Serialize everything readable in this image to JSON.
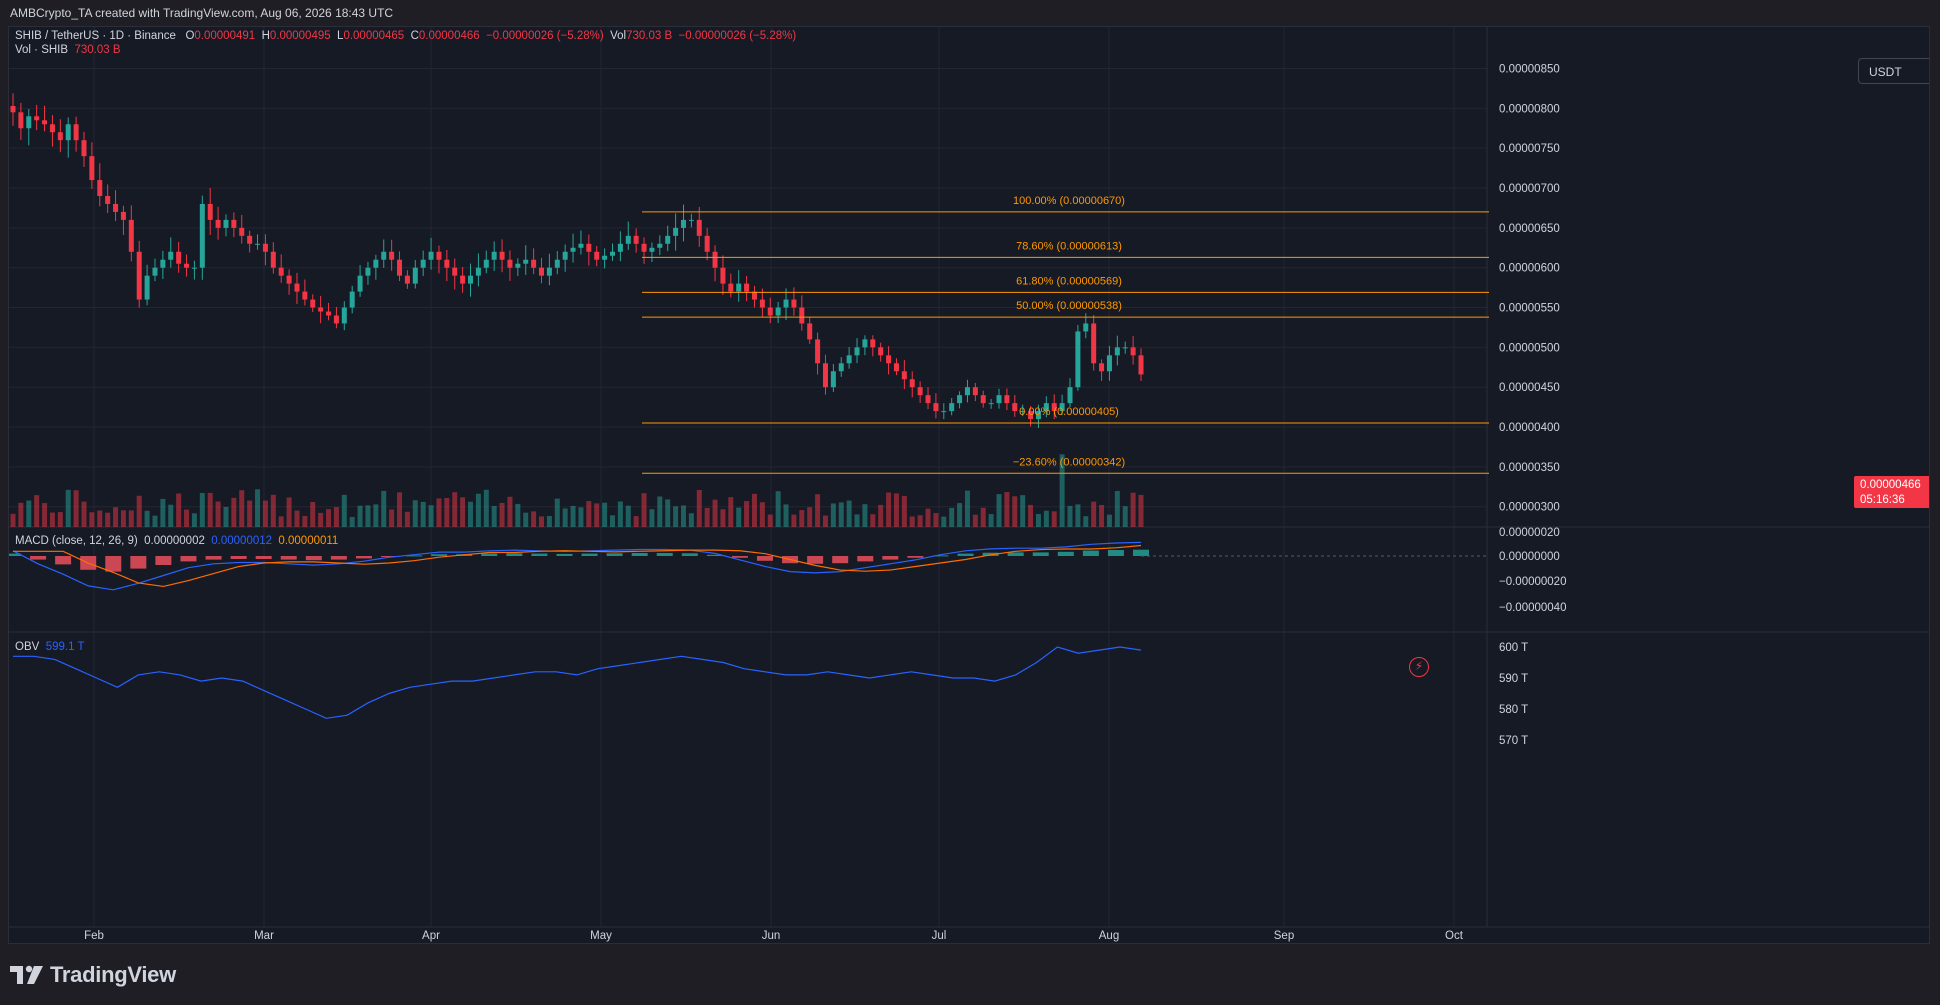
{
  "header": {
    "credit": "AMBCrypto_TA created with TradingView.com, Aug 06, 2026 18:43 UTC"
  },
  "legend": {
    "symbol": "SHIB / TetherUS · 1D · Binance",
    "o_label": "O",
    "o": "0.00000491",
    "h_label": "H",
    "h": "0.00000495",
    "l_label": "L",
    "l": "0.00000465",
    "c_label": "C",
    "c": "0.00000466",
    "change": "−0.00000026 (−5.28%)",
    "vol_label": "Vol",
    "vol": "730.03 B",
    "vol_change": "−0.00000026 (−5.28%)",
    "vol_series_label": "Vol · SHIB",
    "vol_series_value": "730.03 B"
  },
  "currency_button": "USDT",
  "last_price": {
    "value": "0.00000466",
    "countdown": "05:16:36"
  },
  "macd_legend": {
    "label": "MACD (close, 12, 26, 9)",
    "histogram": "0.00000002",
    "macd": "0.00000012",
    "signal": "0.00000011"
  },
  "obv_legend": {
    "label": "OBV",
    "value": "599.1 T"
  },
  "footer": {
    "brand": "TradingView"
  },
  "colors": {
    "up": "#26a69a",
    "down": "#f23645",
    "fib": "#ff9800",
    "macd_line": "#2962ff",
    "signal_line": "#ff6d00",
    "obv_line": "#2962ff"
  },
  "chart_data": {
    "type": "candlestick",
    "price_axis": {
      "ticks": [
        "0.00000850",
        "0.00000800",
        "0.00000750",
        "0.00000700",
        "0.00000650",
        "0.00000600",
        "0.00000550",
        "0.00000500",
        "0.00000450",
        "0.00000400",
        "0.00000350",
        "0.00000300"
      ],
      "ylim": [
        2.62e-06,
        8.82e-06
      ]
    },
    "time_axis": {
      "ticks": [
        "Feb",
        "Mar",
        "Apr",
        "May",
        "Jun",
        "Jul",
        "Aug",
        "Sep",
        "Oct"
      ]
    },
    "close_series": [
      7.95e-06,
      7.75e-06,
      7.9e-06,
      7.85e-06,
      7.8e-06,
      7.7e-06,
      7.6e-06,
      7.8e-06,
      7.6e-06,
      7.4e-06,
      7.1e-06,
      6.9e-06,
      6.8e-06,
      6.7e-06,
      6.6e-06,
      6.2e-06,
      5.6e-06,
      5.9e-06,
      6e-06,
      6.1e-06,
      6.2e-06,
      6.05e-06,
      6e-06,
      6e-06,
      6.8e-06,
      6.6e-06,
      6.5e-06,
      6.6e-06,
      6.5e-06,
      6.4e-06,
      6.3e-06,
      6.3e-06,
      6.2e-06,
      6e-06,
      5.9e-06,
      5.8e-06,
      5.7e-06,
      5.6e-06,
      5.5e-06,
      5.45e-06,
      5.4e-06,
      5.3e-06,
      5.5e-06,
      5.7e-06,
      5.9e-06,
      6e-06,
      6.1e-06,
      6.2e-06,
      6.1e-06,
      5.9e-06,
      5.8e-06,
      6e-06,
      6.1e-06,
      6.2e-06,
      6.1e-06,
      6e-06,
      5.9e-06,
      5.8e-06,
      5.9e-06,
      6e-06,
      6.1e-06,
      6.2e-06,
      6.1e-06,
      6e-06,
      6.05e-06,
      6.1e-06,
      6e-06,
      5.9e-06,
      6e-06,
      6.1e-06,
      6.2e-06,
      6.25e-06,
      6.3e-06,
      6.2e-06,
      6.1e-06,
      6.15e-06,
      6.2e-06,
      6.3e-06,
      6.4e-06,
      6.3e-06,
      6.2e-06,
      6.25e-06,
      6.3e-06,
      6.4e-06,
      6.5e-06,
      6.6e-06,
      6.6e-06,
      6.4e-06,
      6.2e-06,
      6e-06,
      5.8e-06,
      5.7e-06,
      5.8e-06,
      5.7e-06,
      5.6e-06,
      5.5e-06,
      5.4e-06,
      5.5e-06,
      5.6e-06,
      5.5e-06,
      5.3e-06,
      5.1e-06,
      4.8e-06,
      4.5e-06,
      4.7e-06,
      4.8e-06,
      4.9e-06,
      5e-06,
      5.1e-06,
      5e-06,
      4.9e-06,
      4.8e-06,
      4.7e-06,
      4.6e-06,
      4.5e-06,
      4.4e-06,
      4.3e-06,
      4.2e-06,
      4.2e-06,
      4.3e-06,
      4.4e-06,
      4.5e-06,
      4.4e-06,
      4.3e-06,
      4.3e-06,
      4.4e-06,
      4.3e-06,
      4.2e-06,
      4.2e-06,
      4.1e-06,
      4.2e-06,
      4.3e-06,
      4.2e-06,
      4.3e-06,
      4.5e-06,
      5.2e-06,
      5.3e-06,
      4.8e-06,
      4.7e-06,
      4.9e-06,
      5e-06,
      5e-06,
      4.9e-06,
      4.66e-06
    ],
    "fibonacci": [
      {
        "label": "100.00% (0.00000670)",
        "price": 6.7e-06
      },
      {
        "label": "78.60% (0.00000613)",
        "price": 6.13e-06
      },
      {
        "label": "61.80% (0.00000569)",
        "price": 5.69e-06
      },
      {
        "label": "50.00% (0.00000538)",
        "price": 5.38e-06
      },
      {
        "label": "0.00% (0.00000405)",
        "price": 4.05e-06
      },
      {
        "label": "−23.60% (0.00000342)",
        "price": 3.42e-06
      }
    ],
    "macd_axis": {
      "ticks": [
        "0.00000020",
        "0.00000000",
        "−0.00000020",
        "−0.00000040"
      ]
    },
    "obv_axis": {
      "ticks": [
        "600 T",
        "590 T",
        "580 T",
        "570 T"
      ]
    }
  }
}
